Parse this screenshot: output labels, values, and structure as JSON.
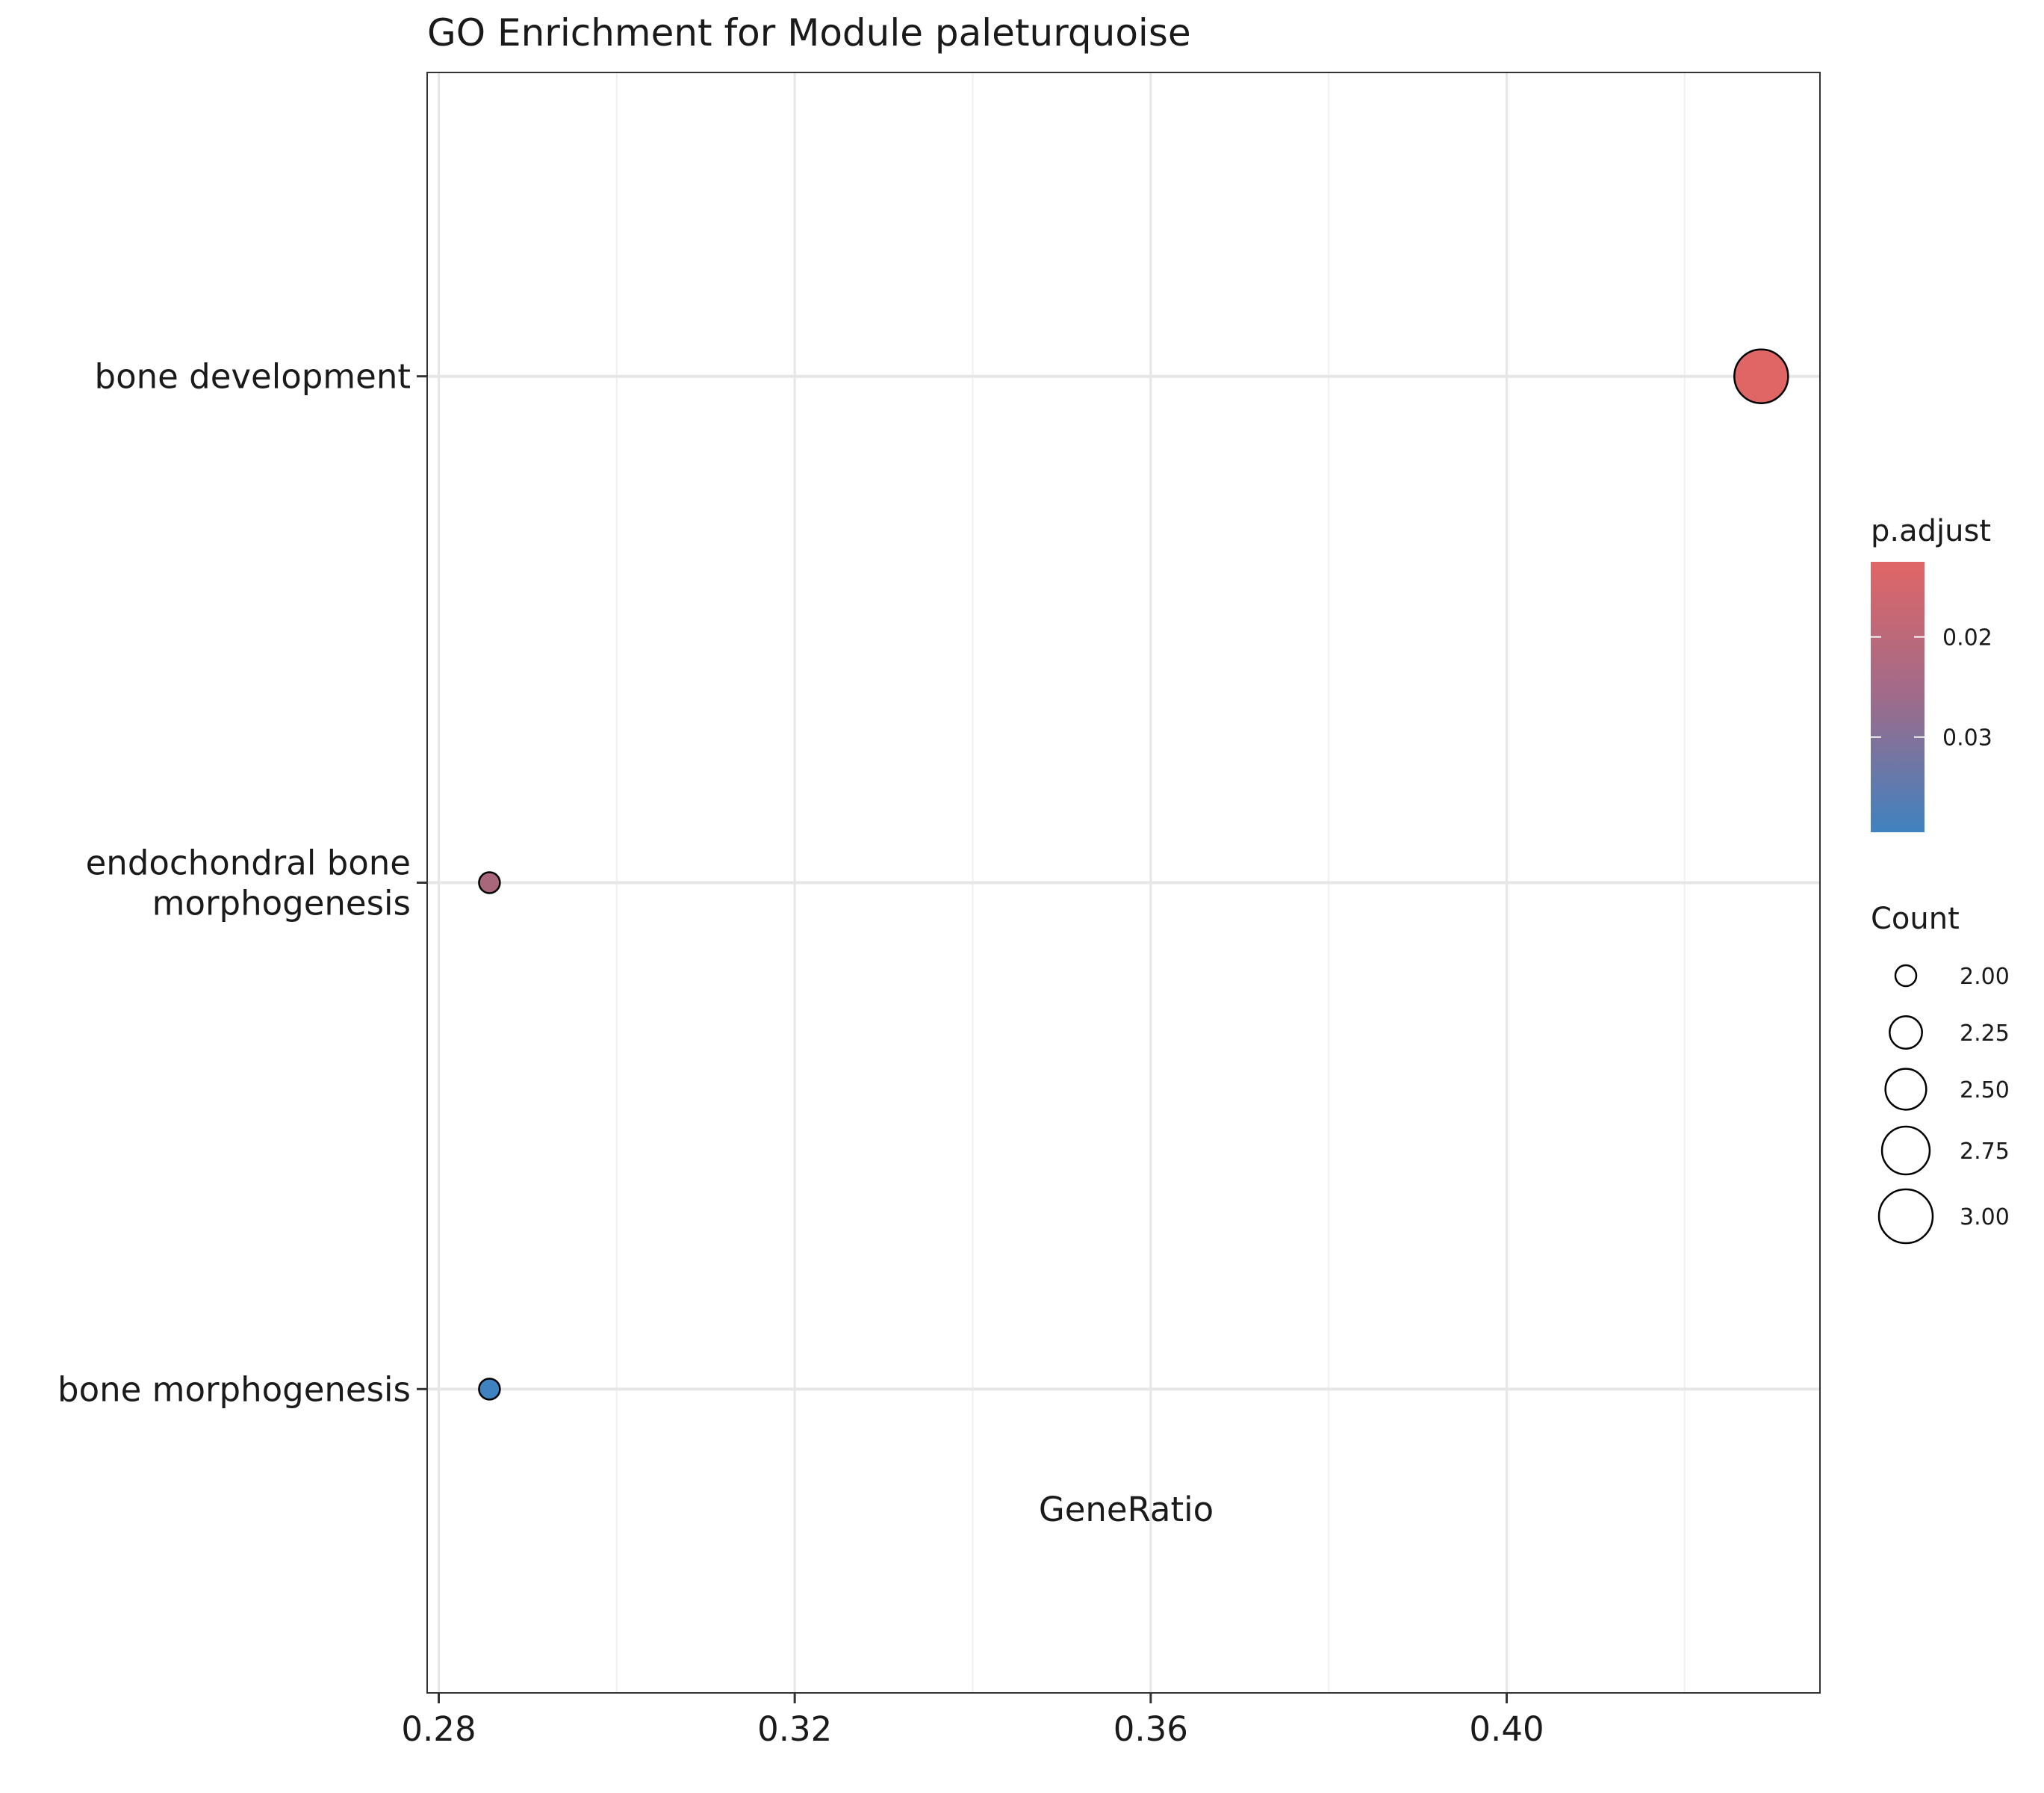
{
  "chart_data": {
    "type": "scatter",
    "title": "GO Enrichment for Module paleturquoise",
    "xlabel": "GeneRatio",
    "ylabel": "",
    "xlim": [
      0.2787,
      0.4352
    ],
    "x_ticks": [
      {
        "value": 0.28,
        "label": "0.28"
      },
      {
        "value": 0.32,
        "label": "0.32"
      },
      {
        "value": 0.36,
        "label": "0.36"
      },
      {
        "value": 0.4,
        "label": "0.40"
      }
    ],
    "x_minor_ticks": [
      0.3,
      0.34,
      0.38,
      0.42
    ],
    "categories": [
      {
        "label_lines": [
          "bone development"
        ]
      },
      {
        "label_lines": [
          "endochondral bone",
          "morphogenesis"
        ]
      },
      {
        "label_lines": [
          "bone morphogenesis"
        ]
      }
    ],
    "points": [
      {
        "term": "bone development",
        "gene_ratio": 0.4286,
        "count": 3,
        "p_adjust": 0.0125,
        "color": "#E06666"
      },
      {
        "term": "endochondral bone morphogenesis",
        "gene_ratio": 0.2857,
        "count": 2,
        "p_adjust": 0.024,
        "color": "#A8677A"
      },
      {
        "term": "bone morphogenesis",
        "gene_ratio": 0.2857,
        "count": 2,
        "p_adjust": 0.0395,
        "color": "#3F82C0"
      }
    ],
    "grid": true,
    "legend_position": "right",
    "color_legend": {
      "title": "p.adjust",
      "low_color": "#E06666",
      "mid_color": "#9F6B8A",
      "high_color": "#3F82C0",
      "range": [
        0.0125,
        0.0395
      ],
      "ticks": [
        {
          "value": 0.02,
          "label": "0.02"
        },
        {
          "value": 0.03,
          "label": "0.03"
        }
      ]
    },
    "size_legend": {
      "title": "Count",
      "entries": [
        {
          "value": 2.0,
          "label": "2.00"
        },
        {
          "value": 2.25,
          "label": "2.25"
        },
        {
          "value": 2.5,
          "label": "2.50"
        },
        {
          "value": 2.75,
          "label": "2.75"
        },
        {
          "value": 3.0,
          "label": "3.00"
        }
      ]
    }
  }
}
